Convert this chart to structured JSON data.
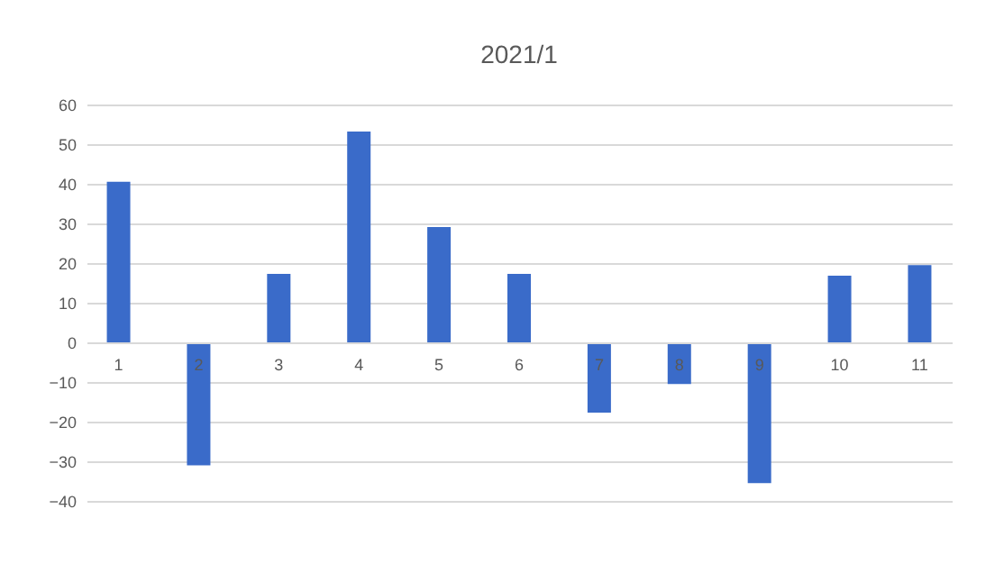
{
  "chart_data": {
    "type": "bar",
    "title": "2021/1",
    "categories": [
      "1",
      "2",
      "3",
      "4",
      "5",
      "6",
      "7",
      "8",
      "9",
      "10",
      "11"
    ],
    "values": [
      40.5,
      -31,
      17.3,
      53.2,
      29.1,
      17.3,
      -17.7,
      -10.5,
      -35.5,
      16.8,
      19.5
    ],
    "color": "#3a6bc9",
    "ylim": [
      -40,
      60
    ],
    "yticks": [
      -40,
      -30,
      -20,
      -10,
      0,
      10,
      20,
      30,
      40,
      50,
      60
    ],
    "grid": "y"
  }
}
